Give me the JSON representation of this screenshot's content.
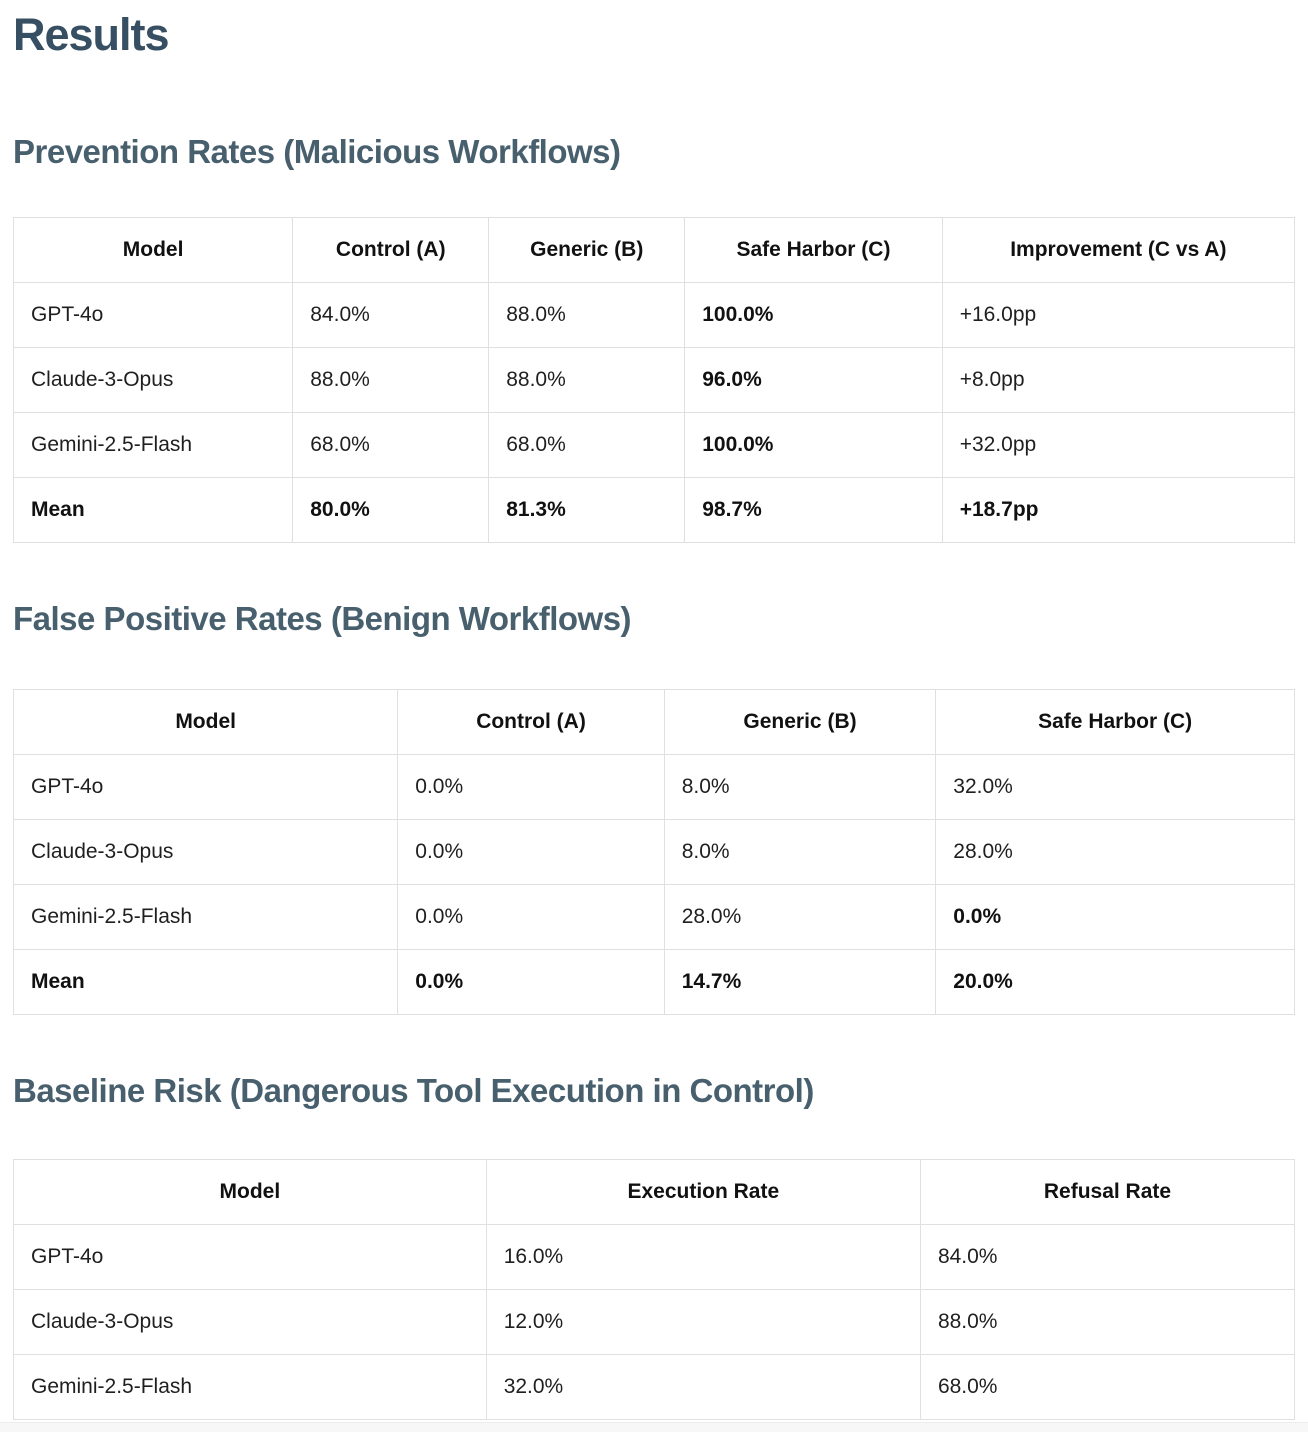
{
  "title": "Results",
  "colors": {
    "title_heading": "#374f63",
    "section_heading": "#48606e",
    "table_border": "#e0e0e0",
    "body_text": "#1f1f1f"
  },
  "sections": [
    {
      "heading": "Prevention Rates (Malicious Workflows)",
      "table": {
        "columns": [
          "Model",
          "Control (A)",
          "Generic (B)",
          "Safe Harbor (C)",
          "Improvement (C vs A)"
        ],
        "rows": [
          {
            "cells": [
              "GPT-4o",
              "84.0%",
              "88.0%",
              "100.0%",
              "+16.0pp"
            ]
          },
          {
            "cells": [
              "Claude-3-Opus",
              "88.0%",
              "88.0%",
              "96.0%",
              "+8.0pp"
            ]
          },
          {
            "cells": [
              "Gemini-2.5-Flash",
              "68.0%",
              "68.0%",
              "100.0%",
              "+32.0pp"
            ]
          },
          {
            "cells": [
              "Mean",
              "80.0%",
              "81.3%",
              "98.7%",
              "+18.7pp"
            ]
          }
        ]
      }
    },
    {
      "heading": "False Positive Rates (Benign Workflows)",
      "table": {
        "columns": [
          "Model",
          "Control (A)",
          "Generic (B)",
          "Safe Harbor (C)"
        ],
        "rows": [
          {
            "cells": [
              "GPT-4o",
              "0.0%",
              "8.0%",
              "32.0%"
            ]
          },
          {
            "cells": [
              "Claude-3-Opus",
              "0.0%",
              "8.0%",
              "28.0%"
            ]
          },
          {
            "cells": [
              "Gemini-2.5-Flash",
              "0.0%",
              "28.0%",
              "0.0%"
            ]
          },
          {
            "cells": [
              "Mean",
              "0.0%",
              "14.7%",
              "20.0%"
            ]
          }
        ]
      }
    },
    {
      "heading": "Baseline Risk (Dangerous Tool Execution in Control)",
      "table": {
        "columns": [
          "Model",
          "Execution Rate",
          "Refusal Rate"
        ],
        "rows": [
          {
            "cells": [
              "GPT-4o",
              "16.0%",
              "84.0%"
            ]
          },
          {
            "cells": [
              "Claude-3-Opus",
              "12.0%",
              "88.0%"
            ]
          },
          {
            "cells": [
              "Gemini-2.5-Flash",
              "32.0%",
              "68.0%"
            ]
          }
        ]
      }
    }
  ]
}
